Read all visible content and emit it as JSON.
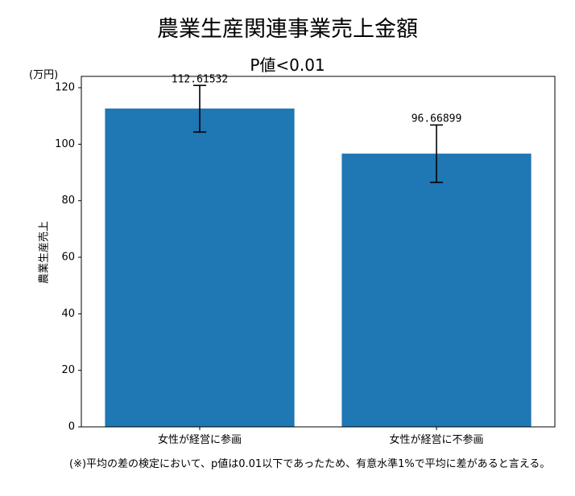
{
  "chart_data": {
    "type": "bar",
    "title": "農業生産関連事業売上金額",
    "subtitle": "P値<0.01",
    "unit_label": "(万円)",
    "ylabel": "農業生産売上",
    "xlabel": "",
    "categories": [
      "女性が経営に参画",
      "女性が経営に不参画"
    ],
    "values": [
      112.61532,
      96.66899
    ],
    "value_labels": [
      "112.61532",
      "96.66899"
    ],
    "error_low": [
      104.3,
      86.5
    ],
    "error_high": [
      120.8,
      106.8
    ],
    "ylim": [
      0,
      124
    ],
    "yticks": [
      0,
      20,
      40,
      60,
      80,
      100,
      120
    ],
    "bar_color": "#1f77b4",
    "error_color": "#000000",
    "grid": false
  },
  "note": "(※)平均の差の検定において、p値は0.01以下であったため、有意水準1%で平均に差があると言える。"
}
